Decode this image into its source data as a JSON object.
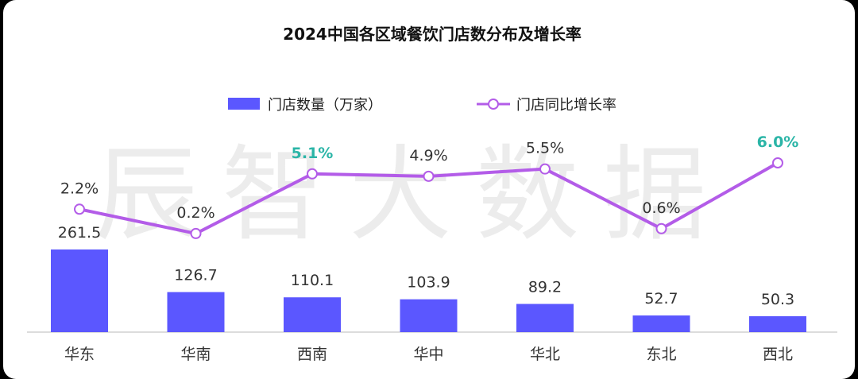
{
  "chart_data": {
    "type": "bar+line",
    "title": "2024中国各区域餐饮门店数分布及增长率",
    "watermark": "辰智大数据",
    "categories": [
      "华东",
      "华南",
      "西南",
      "华中",
      "华北",
      "东北",
      "西北"
    ],
    "series": [
      {
        "name": "门店数量（万家）",
        "type": "bar",
        "color": "#5b57ff",
        "values": [
          261.5,
          126.7,
          110.1,
          103.9,
          89.2,
          52.7,
          50.3
        ],
        "labels": [
          "261.5",
          "126.7",
          "110.1",
          "103.9",
          "89.2",
          "52.7",
          "50.3"
        ]
      },
      {
        "name": "门店同比增长率",
        "type": "line",
        "color": "#b35ce8",
        "values": [
          2.2,
          0.2,
          5.1,
          4.9,
          5.5,
          0.6,
          6.0
        ],
        "labels": [
          "2.2%",
          "0.2%",
          "5.1%",
          "4.9%",
          "5.5%",
          "0.6%",
          "6.0%"
        ],
        "highlight_color": "#2bb5a7",
        "highlighted": [
          "5.1%",
          "6.0%"
        ]
      }
    ],
    "legend_position": "top-center",
    "grid": false
  }
}
